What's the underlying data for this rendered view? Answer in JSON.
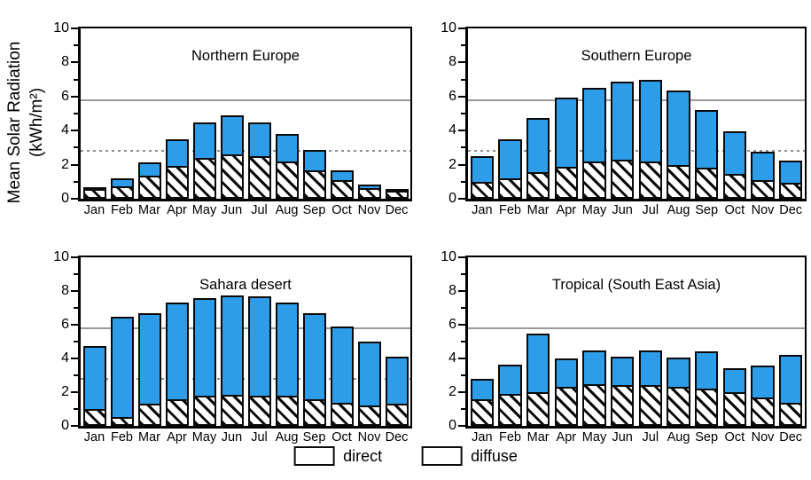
{
  "y_axis_label": {
    "line1": "Mean Solar Radiation",
    "line2": "(kWh/m²)"
  },
  "legend": {
    "direct_label": "direct",
    "diffuse_label": "diffuse"
  },
  "colors": {
    "direct_fill": "#2E9DE9",
    "bar_outline": "#0a0a0a",
    "reference_line": "#9a9a9a"
  },
  "chart_data": [
    {
      "type": "bar",
      "stacked": true,
      "title": "Northern Europe",
      "xlabel": "",
      "ylabel": "Mean Solar Radiation (kWh/m²)",
      "categories": [
        "Jan",
        "Feb",
        "Mar",
        "Apr",
        "May",
        "Jun",
        "Jul",
        "Aug",
        "Sep",
        "Oct",
        "Nov",
        "Dec"
      ],
      "series": [
        {
          "name": "diffuse",
          "values": [
            0.55,
            0.75,
            1.35,
            1.95,
            2.4,
            2.6,
            2.5,
            2.2,
            1.65,
            1.1,
            0.6,
            0.45
          ]
        },
        {
          "name": "direct",
          "values": [
            0.15,
            0.45,
            0.8,
            1.55,
            2.1,
            2.3,
            2.0,
            1.6,
            1.2,
            0.55,
            0.25,
            0.1
          ]
        }
      ],
      "totals": [
        0.7,
        1.2,
        2.15,
        3.5,
        4.5,
        4.9,
        4.5,
        3.8,
        2.85,
        1.65,
        0.85,
        0.55
      ],
      "ylim": [
        0,
        10
      ],
      "yticks": [
        0,
        2,
        4,
        6,
        8,
        10
      ],
      "grid": false,
      "legend_position": "shared-bottom",
      "reference_lines": [
        {
          "value": 5.8,
          "style": "solid"
        },
        {
          "value": 2.8,
          "style": "dotted"
        }
      ]
    },
    {
      "type": "bar",
      "stacked": true,
      "title": "Southern Europe",
      "xlabel": "",
      "ylabel": "Mean Solar Radiation (kWh/m²)",
      "categories": [
        "Jan",
        "Feb",
        "Mar",
        "Apr",
        "May",
        "Jun",
        "Jul",
        "Aug",
        "Sep",
        "Oct",
        "Nov",
        "Dec"
      ],
      "series": [
        {
          "name": "diffuse",
          "values": [
            1.0,
            1.2,
            1.55,
            1.9,
            2.2,
            2.3,
            2.2,
            2.0,
            1.8,
            1.45,
            1.1,
            0.95
          ]
        },
        {
          "name": "direct",
          "values": [
            1.5,
            2.3,
            3.2,
            4.05,
            4.3,
            4.6,
            4.8,
            4.35,
            3.4,
            2.5,
            1.65,
            1.3
          ]
        }
      ],
      "totals": [
        2.5,
        3.5,
        4.75,
        5.95,
        6.5,
        6.9,
        7.0,
        6.35,
        5.2,
        3.95,
        2.75,
        2.25
      ],
      "ylim": [
        0,
        10
      ],
      "yticks": [
        0,
        2,
        4,
        6,
        8,
        10
      ],
      "grid": false,
      "legend_position": "shared-bottom",
      "reference_lines": [
        {
          "value": 5.8,
          "style": "solid"
        },
        {
          "value": 2.8,
          "style": "dotted"
        }
      ]
    },
    {
      "type": "bar",
      "stacked": true,
      "title": "Sahara desert",
      "xlabel": "",
      "ylabel": "Mean Solar Radiation (kWh/m²)",
      "categories": [
        "Jan",
        "Feb",
        "Mar",
        "Apr",
        "May",
        "Jun",
        "Jul",
        "Aug",
        "Sep",
        "Oct",
        "Nov",
        "Dec"
      ],
      "series": [
        {
          "name": "diffuse",
          "values": [
            1.0,
            0.55,
            1.3,
            1.6,
            1.8,
            1.85,
            1.8,
            1.8,
            1.6,
            1.35,
            1.2,
            1.3
          ]
        },
        {
          "name": "direct",
          "values": [
            3.75,
            5.9,
            5.4,
            5.7,
            5.8,
            5.9,
            5.9,
            5.5,
            5.1,
            4.55,
            3.8,
            2.8
          ]
        }
      ],
      "totals": [
        4.75,
        6.45,
        6.7,
        7.3,
        7.6,
        7.75,
        7.7,
        7.3,
        6.7,
        5.9,
        5.0,
        4.1
      ],
      "ylim": [
        0,
        10
      ],
      "yticks": [
        0,
        2,
        4,
        6,
        8,
        10
      ],
      "grid": false,
      "legend_position": "shared-bottom",
      "reference_lines": [
        {
          "value": 5.8,
          "style": "solid"
        },
        {
          "value": 2.8,
          "style": "dotted"
        }
      ]
    },
    {
      "type": "bar",
      "stacked": true,
      "title": "Tropical (South East Asia)",
      "xlabel": "",
      "ylabel": "Mean Solar Radiation (kWh/m²)",
      "categories": [
        "Jan",
        "Feb",
        "Mar",
        "Apr",
        "May",
        "Jun",
        "Jul",
        "Aug",
        "Sep",
        "Oct",
        "Nov",
        "Dec"
      ],
      "series": [
        {
          "name": "diffuse",
          "values": [
            1.6,
            1.9,
            2.0,
            2.3,
            2.45,
            2.4,
            2.4,
            2.3,
            2.2,
            2.0,
            1.7,
            1.35
          ]
        },
        {
          "name": "direct",
          "values": [
            1.2,
            1.75,
            3.5,
            1.7,
            2.05,
            1.7,
            2.1,
            1.75,
            2.2,
            1.4,
            1.9,
            2.85
          ]
        }
      ],
      "totals": [
        2.8,
        3.65,
        5.5,
        4.0,
        4.5,
        4.1,
        4.5,
        4.05,
        4.4,
        3.4,
        3.6,
        4.2
      ],
      "ylim": [
        0,
        10
      ],
      "yticks": [
        0,
        2,
        4,
        6,
        8,
        10
      ],
      "grid": false,
      "legend_position": "shared-bottom",
      "reference_lines": [
        {
          "value": 5.8,
          "style": "solid"
        }
      ]
    }
  ]
}
